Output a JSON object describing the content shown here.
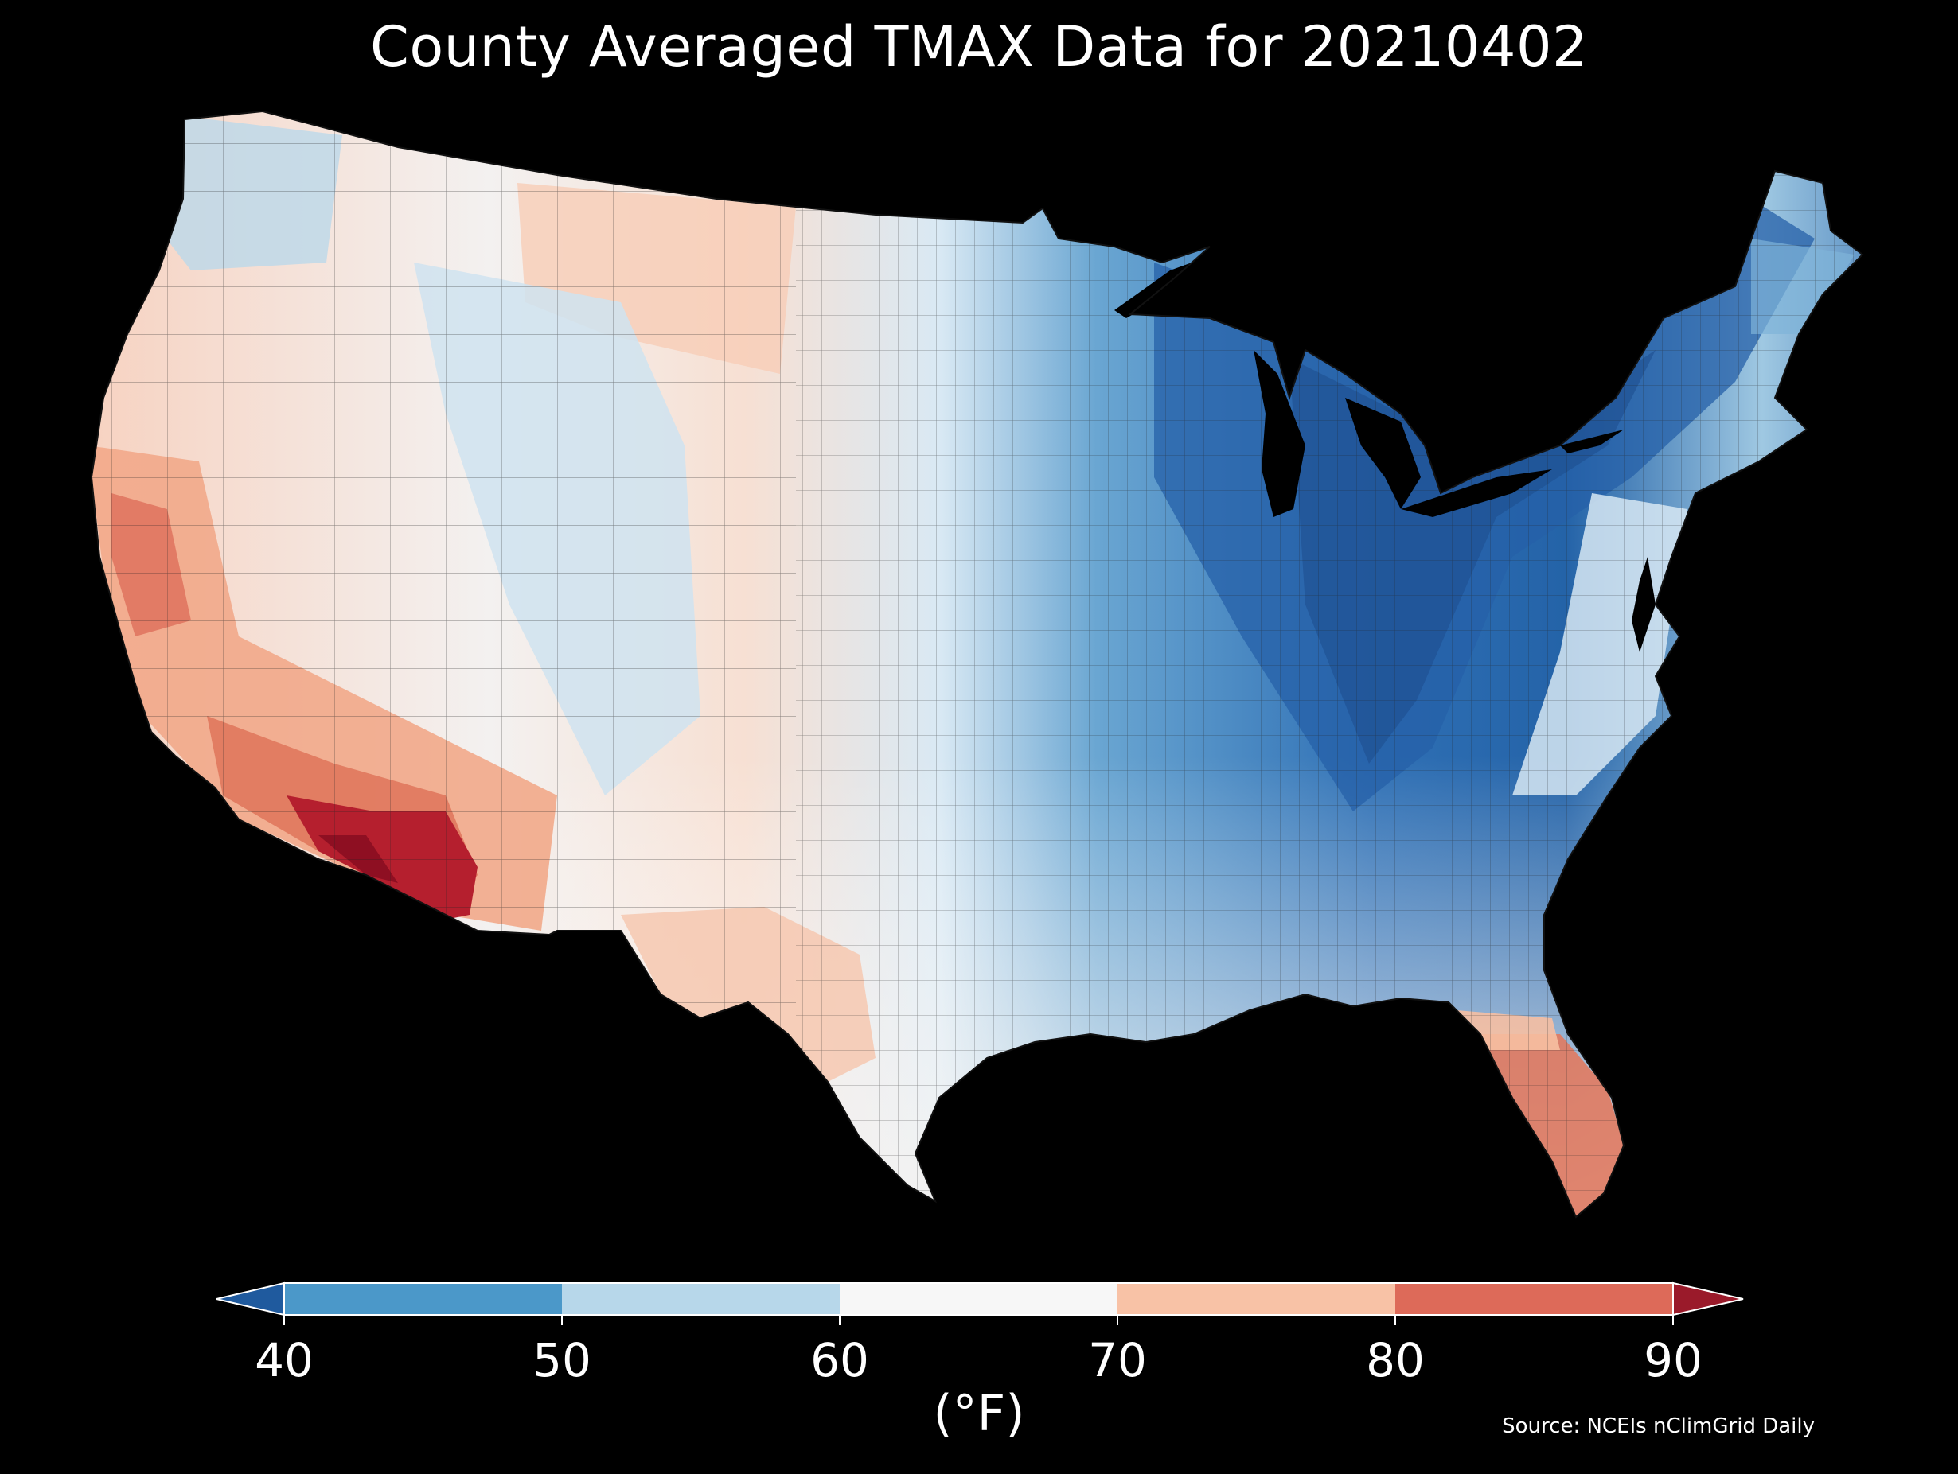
{
  "title": "County Averaged TMAX Data for 20210402",
  "colorbar": {
    "ticks": [
      "40",
      "50",
      "60",
      "70",
      "80",
      "90"
    ],
    "unit": "(°F)",
    "colors": {
      "under": "#1f5a9e",
      "b40_50": "#4b98c9",
      "b50_60": "#b7d7ea",
      "b60_70": "#f7f7f7",
      "b70_80": "#f8c2a6",
      "b80_90": "#dd6a59",
      "over": "#9a1a2a"
    }
  },
  "source": "Source: NCEIs nClimGrid Daily",
  "map_colors": {
    "deep_blue": "#1d4f8f",
    "blue": "#2e6fb4",
    "mid_blue": "#4f93c7",
    "light_blue": "#a9cde4",
    "pale_blue": "#dbeaf4",
    "white": "#f4f4f4",
    "pale_red": "#f8ddd0",
    "light_red": "#f6bfa2",
    "red": "#e07a60",
    "dark_red": "#b51f2e",
    "darkest_red": "#8e0f22",
    "background": "#000000"
  }
}
